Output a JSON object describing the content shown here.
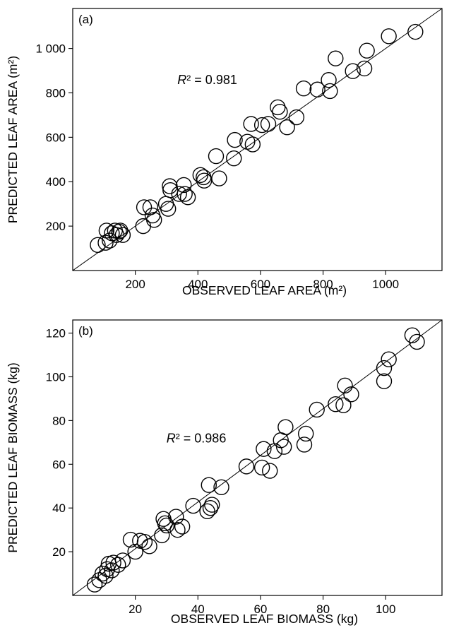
{
  "chart_data": [
    {
      "type": "scatter",
      "panel_label": "(a)",
      "xlabel": "OBSERVED LEAF AREA (m²)",
      "ylabel": "PREDICTED LEAF AREA (m²)",
      "xlim": [
        0,
        1180
      ],
      "ylim": [
        0,
        1180
      ],
      "xticks": [
        200,
        400,
        600,
        800,
        1000
      ],
      "yticks": [
        200,
        400,
        600,
        800,
        1000
      ],
      "xtick_labels": [
        "200",
        "400",
        "600",
        "800",
        "1000"
      ],
      "ytick_labels": [
        "200",
        "400",
        "600",
        "800",
        "1 000"
      ],
      "annotation": {
        "prefix": "R",
        "text": "² = 0.981"
      },
      "annotation_at": [
        430,
        840
      ],
      "fit_line": [
        [
          0,
          0
        ],
        [
          1180,
          1180
        ]
      ],
      "grid": false,
      "legend": "none",
      "points": [
        [
          80,
          115
        ],
        [
          105,
          125
        ],
        [
          108,
          180
        ],
        [
          118,
          135
        ],
        [
          125,
          168
        ],
        [
          135,
          180
        ],
        [
          140,
          160
        ],
        [
          148,
          175
        ],
        [
          152,
          180
        ],
        [
          160,
          160
        ],
        [
          225,
          200
        ],
        [
          228,
          285
        ],
        [
          248,
          285
        ],
        [
          255,
          248
        ],
        [
          260,
          228
        ],
        [
          298,
          300
        ],
        [
          305,
          278
        ],
        [
          310,
          380
        ],
        [
          312,
          362
        ],
        [
          340,
          345
        ],
        [
          355,
          385
        ],
        [
          358,
          345
        ],
        [
          368,
          330
        ],
        [
          408,
          430
        ],
        [
          418,
          420
        ],
        [
          420,
          405
        ],
        [
          458,
          515
        ],
        [
          468,
          415
        ],
        [
          515,
          505
        ],
        [
          518,
          588
        ],
        [
          558,
          580
        ],
        [
          570,
          660
        ],
        [
          575,
          568
        ],
        [
          605,
          655
        ],
        [
          625,
          660
        ],
        [
          655,
          735
        ],
        [
          662,
          715
        ],
        [
          685,
          645
        ],
        [
          715,
          690
        ],
        [
          738,
          820
        ],
        [
          782,
          815
        ],
        [
          818,
          858
        ],
        [
          822,
          808
        ],
        [
          840,
          955
        ],
        [
          895,
          898
        ],
        [
          932,
          910
        ],
        [
          940,
          990
        ],
        [
          1010,
          1055
        ],
        [
          1095,
          1075
        ]
      ]
    },
    {
      "type": "scatter",
      "panel_label": "(b)",
      "xlabel": "OBSERVED LEAF BIOMASS (kg)",
      "ylabel": "PREDICTED LEAF BIOMASS (kg)",
      "xlim": [
        0,
        118
      ],
      "ylim": [
        0,
        126
      ],
      "xticks": [
        20,
        40,
        60,
        80,
        100
      ],
      "yticks": [
        20,
        40,
        60,
        80,
        100,
        120
      ],
      "xtick_labels": [
        "20",
        "40",
        "60",
        "80",
        "100"
      ],
      "ytick_labels": [
        "20",
        "40",
        "60",
        "80",
        "100",
        "120"
      ],
      "annotation": {
        "prefix": "R",
        "text": "² = 0.986"
      },
      "annotation_at": [
        39.5,
        70
      ],
      "fit_line": [
        [
          0,
          0
        ],
        [
          118,
          126
        ]
      ],
      "grid": false,
      "legend": "none",
      "points": [
        [
          7,
          5
        ],
        [
          8.5,
          7
        ],
        [
          9.5,
          10
        ],
        [
          10.5,
          9
        ],
        [
          11,
          12
        ],
        [
          11.5,
          14.5
        ],
        [
          12.5,
          11.5
        ],
        [
          13,
          15
        ],
        [
          14.5,
          14
        ],
        [
          16,
          16
        ],
        [
          18.5,
          25.5
        ],
        [
          20,
          20
        ],
        [
          21.5,
          25
        ],
        [
          23,
          24.5
        ],
        [
          24.5,
          22.5
        ],
        [
          28.5,
          27.5
        ],
        [
          29,
          35
        ],
        [
          29.5,
          33
        ],
        [
          30,
          32
        ],
        [
          33,
          36
        ],
        [
          33.5,
          30
        ],
        [
          35,
          31.5
        ],
        [
          38.5,
          41
        ],
        [
          43,
          38.5
        ],
        [
          43.5,
          50.5
        ],
        [
          44,
          40
        ],
        [
          44.5,
          41.5
        ],
        [
          47.5,
          49.5
        ],
        [
          55.5,
          59
        ],
        [
          60.5,
          58.5
        ],
        [
          61,
          67
        ],
        [
          63,
          57
        ],
        [
          64.5,
          66
        ],
        [
          66.5,
          71
        ],
        [
          67.5,
          68
        ],
        [
          68,
          77
        ],
        [
          74,
          69
        ],
        [
          74.5,
          74
        ],
        [
          78,
          85
        ],
        [
          84,
          87.5
        ],
        [
          86.5,
          87
        ],
        [
          87,
          96
        ],
        [
          89,
          92
        ],
        [
          99.5,
          98
        ],
        [
          99.5,
          104
        ],
        [
          101,
          108
        ],
        [
          108.5,
          119
        ],
        [
          110,
          116
        ]
      ]
    }
  ]
}
